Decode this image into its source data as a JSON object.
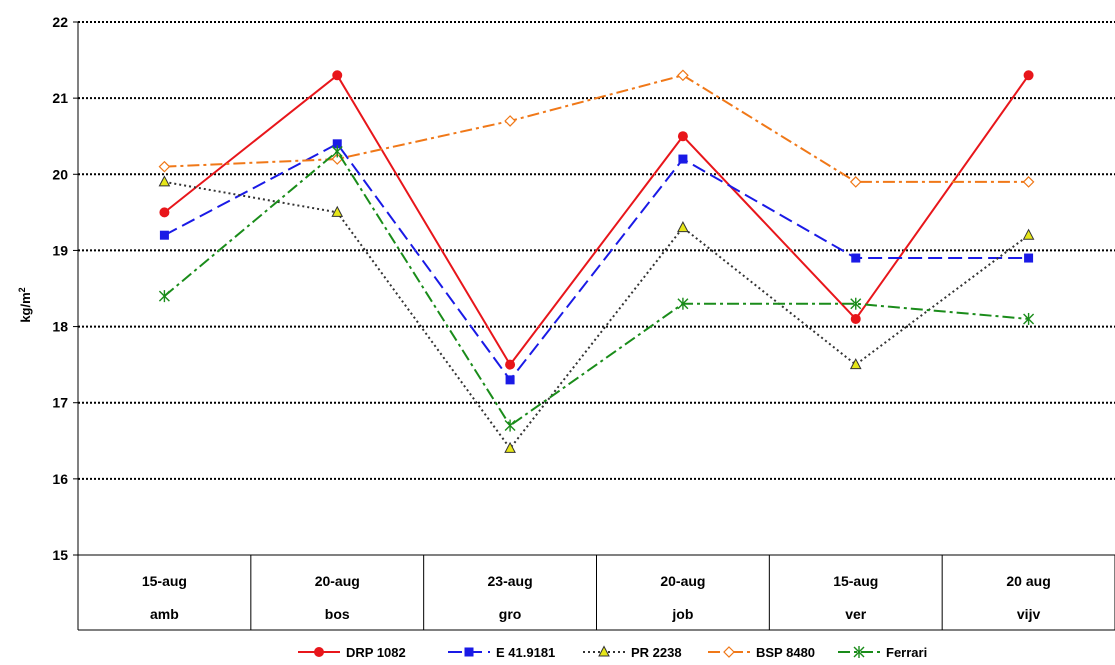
{
  "chart_data": {
    "type": "line",
    "ylabel": "kg/m",
    "ylabel_superscript": "2",
    "ylim": [
      15,
      22
    ],
    "yticks": [
      "15",
      "16",
      "17",
      "18",
      "19",
      "20",
      "21",
      "22"
    ],
    "grid": "horizontal dotted",
    "legend_position": "bottom",
    "categories": [
      {
        "date": "15-aug",
        "site": "amb"
      },
      {
        "date": "20-aug",
        "site": "bos"
      },
      {
        "date": "23-aug",
        "site": "gro"
      },
      {
        "date": "20-aug",
        "site": "job"
      },
      {
        "date": "15-aug",
        "site": "ver"
      },
      {
        "date": "20 aug",
        "site": "vijv"
      }
    ],
    "series": [
      {
        "name": "DRP 1082",
        "color": "#e8161b",
        "marker": "circle",
        "dash": "solid",
        "values": [
          19.5,
          21.3,
          17.5,
          20.5,
          18.1,
          21.3
        ]
      },
      {
        "name": "E 41.9181",
        "color": "#1a1ae6",
        "marker": "square",
        "dash": "long-dash",
        "values": [
          19.2,
          20.4,
          17.3,
          20.2,
          18.9,
          18.9
        ]
      },
      {
        "name": "PR 2238",
        "color": "#333333",
        "marker": "triangle",
        "marker_fill": "#e6e619",
        "dash": "dotted",
        "values": [
          19.9,
          19.5,
          16.4,
          19.3,
          17.5,
          19.2
        ]
      },
      {
        "name": "BSP 8480",
        "color": "#f07818",
        "marker": "diamond",
        "marker_fill": "#ffffff",
        "dash": "dash-dot",
        "values": [
          20.1,
          20.2,
          20.7,
          21.3,
          19.9,
          19.9
        ]
      },
      {
        "name": "Ferrari",
        "color": "#1a8c1a",
        "marker": "asterisk",
        "dash": "dash-dot",
        "values": [
          18.4,
          20.3,
          16.7,
          18.3,
          18.3,
          18.1
        ]
      }
    ]
  }
}
